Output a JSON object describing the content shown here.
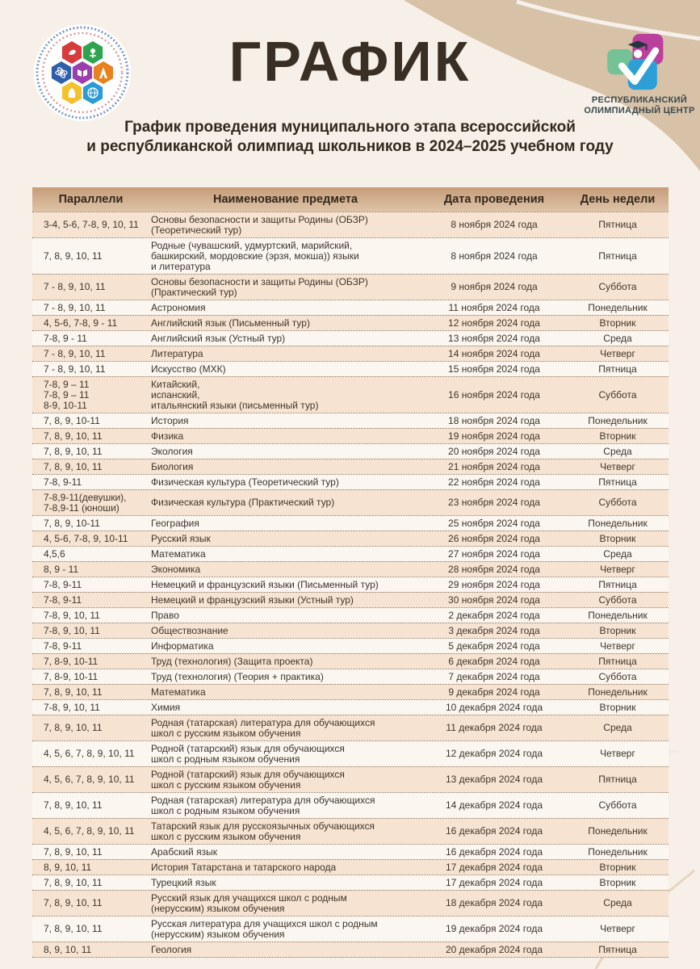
{
  "header": {
    "title": "ГРАФИК",
    "subtitle_line1": "График проведения муниципального этапа всероссийской",
    "subtitle_line2": "и республиканской олимпиад школьников в 2024–2025 учебном году",
    "center_logo": {
      "line1": "РЕСПУБЛИКАНСКИЙ",
      "line2": "ОЛИМПИАДНЫЙ ЦЕНТР"
    }
  },
  "colors": {
    "page_bg": "#f6f0e8",
    "blob_tan": "#d7c1a7",
    "header_row": "#cfae8c",
    "row_peach": "#f7e3d1",
    "row_cream": "#fbf6ef",
    "text_dark": "#3e352b",
    "logo_green": "#74c296",
    "logo_magenta": "#bb3f9d",
    "logo_blue": "#2c9fd6"
  },
  "table": {
    "headers": [
      "Параллели",
      "Наименование предмета",
      "Дата проведения",
      "День недели"
    ],
    "rows": [
      {
        "parallels": "3-4, 5-6, 7-8, 9, 10, 11",
        "subject": "Основы безопасности и защиты Родины (ОБЗР)\n(Теоретический тур)",
        "date": "8 ноября 2024 года",
        "day": "Пятница"
      },
      {
        "parallels": "7, 8, 9, 10, 11",
        "subject": "Родные (чувашский, удмуртский, марийский,\nбашкирский, мордовские (эрзя, мокша)) языки\nи литература",
        "date": "8 ноября 2024 года",
        "day": "Пятница"
      },
      {
        "parallels": "7 - 8, 9, 10, 11",
        "subject": "Основы безопасности и защиты Родины (ОБЗР)\n(Практический тур)",
        "date": "9 ноября 2024 года",
        "day": "Суббота"
      },
      {
        "parallels": "7 - 8, 9, 10, 11",
        "subject": "Астрономия",
        "date": "11 ноября 2024 года",
        "day": "Понедельник"
      },
      {
        "parallels": "4, 5-6, 7-8, 9 - 11",
        "subject": "Английский язык (Письменный тур)",
        "date": "12 ноября 2024 года",
        "day": "Вторник"
      },
      {
        "parallels": "7-8, 9 - 11",
        "subject": "Английский язык (Устный тур)",
        "date": "13 ноября 2024 года",
        "day": "Среда"
      },
      {
        "parallels": "7 - 8, 9, 10, 11",
        "subject": "Литература",
        "date": "14 ноября 2024 года",
        "day": "Четверг"
      },
      {
        "parallels": "7 - 8, 9, 10, 11",
        "subject": "Искусство (МХК)",
        "date": "15 ноября 2024 года",
        "day": "Пятница"
      },
      {
        "parallels": "7-8, 9 – 11\n7-8, 9 – 11\n8-9, 10-11",
        "subject": "Китайский,\nиспанский,\nитальянский языки  (письменный тур)",
        "date": "16 ноября 2024 года",
        "day": "Суббота"
      },
      {
        "parallels": "7, 8, 9, 10-11",
        "subject": "История",
        "date": "18 ноября 2024 года",
        "day": "Понедельник"
      },
      {
        "parallels": "7, 8, 9, 10, 11",
        "subject": "Физика",
        "date": "19 ноября 2024 года",
        "day": "Вторник"
      },
      {
        "parallels": "7, 8, 9, 10, 11",
        "subject": "Экология",
        "date": "20 ноября 2024 года",
        "day": "Среда"
      },
      {
        "parallels": "7, 8, 9, 10, 11",
        "subject": "Биология",
        "date": "21 ноября 2024 года",
        "day": "Четверг"
      },
      {
        "parallels": "7-8, 9-11",
        "subject": "Физическая культура  (Теоретический тур)",
        "date": "22 ноября 2024 года",
        "day": "Пятница"
      },
      {
        "parallels": "7-8,9-11(девушки),\n7-8,9-11 (юноши)",
        "subject": "Физическая культура  (Практический тур)",
        "date": "23 ноября 2024 года",
        "day": "Суббота"
      },
      {
        "parallels": "7, 8, 9, 10-11",
        "subject": "География",
        "date": "25 ноября 2024 года",
        "day": "Понедельник"
      },
      {
        "parallels": "4, 5-6, 7-8, 9, 10-11",
        "subject": "Русский язык",
        "date": "26 ноября 2024 года",
        "day": "Вторник"
      },
      {
        "parallels": "4,5,6",
        "subject": "Математика",
        "date": "27 ноября 2024 года",
        "day": "Среда"
      },
      {
        "parallels": "8, 9 - 11",
        "subject": "Экономика",
        "date": "28 ноября 2024 года",
        "day": "Четверг"
      },
      {
        "parallels": "7-8, 9-11",
        "subject": "Немецкий и французский языки (Письменный тур)",
        "date": "29 ноября 2024 года",
        "day": "Пятница"
      },
      {
        "parallels": "7-8, 9-11",
        "subject": "Немецкий и французский языки (Устный тур)",
        "date": "30 ноября 2024 года",
        "day": "Суббота"
      },
      {
        "parallels": "7-8, 9, 10, 11",
        "subject": "Право",
        "date": "2 декабря 2024 года",
        "day": "Понедельник"
      },
      {
        "parallels": "7-8, 9, 10, 11",
        "subject": "Обществознание",
        "date": "3 декабря 2024 года",
        "day": "Вторник"
      },
      {
        "parallels": "7-8, 9-11",
        "subject": "Информатика",
        "date": "5 декабря 2024 года",
        "day": "Четверг"
      },
      {
        "parallels": "7, 8-9, 10-11",
        "subject": "Труд (технология) (Защита проекта)",
        "date": "6 декабря 2024 года",
        "day": "Пятница"
      },
      {
        "parallels": "7, 8-9, 10-11",
        "subject": "Труд (технология) (Теория + практика)",
        "date": "7 декабря 2024 года",
        "day": "Суббота"
      },
      {
        "parallels": "7, 8, 9, 10, 11",
        "subject": "Математика",
        "date": "9 декабря 2024 года",
        "day": "Понедельник"
      },
      {
        "parallels": "7-8, 9, 10, 11",
        "subject": "Химия",
        "date": "10 декабря 2024 года",
        "day": "Вторник"
      },
      {
        "parallels": "7, 8, 9, 10, 11",
        "subject": "Родная (татарская) литература для  обучающихся\nшкол с русским языком обучения",
        "date": "11 декабря 2024 года",
        "day": "Среда"
      },
      {
        "parallels": "4, 5, 6, 7, 8, 9, 10, 11",
        "subject": "Родной (татарский) язык для обучающихся\nшкол с родным языком обучения",
        "date": "12 декабря 2024 года",
        "day": "Четверг"
      },
      {
        "parallels": "4, 5, 6, 7, 8, 9, 10, 11",
        "subject": "Родной (татарский) язык для обучающихся\nшкол с русским  языком обучения",
        "date": "13 декабря 2024 года",
        "day": "Пятница"
      },
      {
        "parallels": "7, 8, 9, 10, 11",
        "subject": "Родная (татарская) литература для обучающихся\nшкол с родным языком обучения",
        "date": "14 декабря 2024 года",
        "day": "Суббота"
      },
      {
        "parallels": "4, 5, 6, 7, 8, 9, 10, 11",
        "subject": "Татарский язык для русскоязычных обучающихся\nшкол с русским  языком обучения",
        "date": "16 декабря 2024 года",
        "day": "Понедельник"
      },
      {
        "parallels": "7, 8, 9, 10, 11",
        "subject": "Арабский язык",
        "date": "16 декабря 2024 года",
        "day": "Понедельник"
      },
      {
        "parallels": "8, 9, 10, 11",
        "subject": "История Татарстана и татарского народа",
        "date": "17 декабря 2024 года",
        "day": "Вторник"
      },
      {
        "parallels": "7, 8, 9, 10, 11",
        "subject": "Турецкий язык",
        "date": "17 декабря 2024 года",
        "day": "Вторник"
      },
      {
        "parallels": "7, 8, 9, 10, 11",
        "subject": "Русский язык для учащихся школ с родным\n(нерусским) языком обучения",
        "date": "18 декабря 2024 года",
        "day": "Среда"
      },
      {
        "parallels": "7, 8, 9, 10, 11",
        "subject": "Русская литература для учащихся школ с родным\n(нерусским) языком  обучения",
        "date": "19 декабря 2024 года",
        "day": "Четверг"
      },
      {
        "parallels": "8, 9, 10, 11",
        "subject": "Геология",
        "date": "20 декабря 2024 года",
        "day": "Пятница"
      }
    ]
  }
}
